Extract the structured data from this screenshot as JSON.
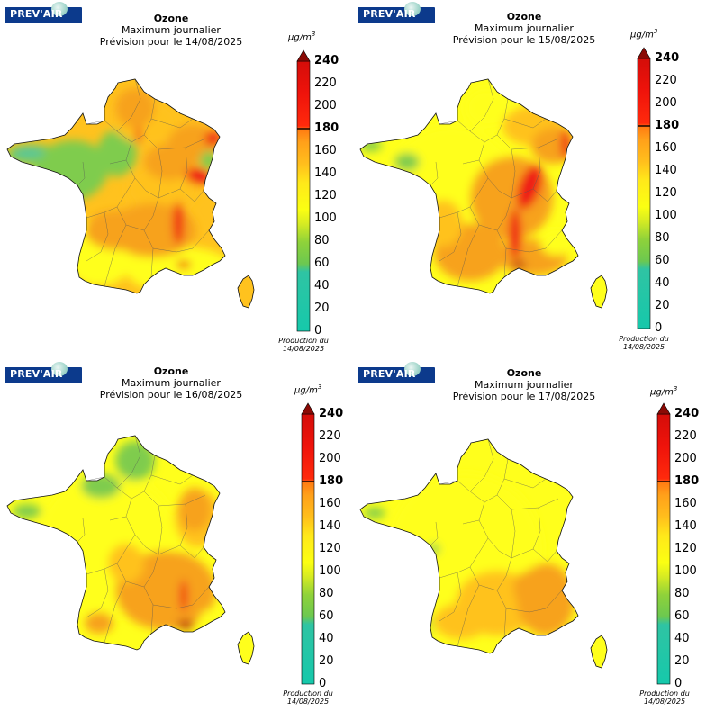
{
  "brand": "PREV'AIR",
  "colorbar": {
    "unit": "µg/m",
    "unit_exp": "3",
    "ticks": [
      0,
      20,
      40,
      60,
      80,
      100,
      120,
      140,
      160,
      180,
      200,
      220,
      240
    ],
    "bold_ticks": [
      180,
      240
    ],
    "colors": [
      "#16c8ab",
      "#3ec3a2",
      "#79c94a",
      "#b6e51c",
      "#f2ff10",
      "#ffdb1d",
      "#ffa218",
      "#ff6a10",
      "#ff1a0c",
      "#e00a05",
      "#8a0a05"
    ],
    "production": [
      "Production du",
      "14/08/2025"
    ]
  },
  "panels": [
    {
      "title": "Ozone",
      "subtitle": "Maximum journalier",
      "forecast": "Prévision pour le 14/08/2025"
    },
    {
      "title": "Ozone",
      "subtitle": "Maximum journalier",
      "forecast": "Prévision pour le 15/08/2025"
    },
    {
      "title": "Ozone",
      "subtitle": "Maximum journalier",
      "forecast": "Prévision pour le 16/08/2025"
    },
    {
      "title": "Ozone",
      "subtitle": "Maximum journalier",
      "forecast": "Prévision pour le 17/08/2025"
    }
  ],
  "map_colors": {
    "green": "#7fcc4e",
    "teal": "#56c69a",
    "yellow_green": "#d9ec2a",
    "yellow": "#ffff1c",
    "light_orange": "#ffc21e",
    "orange": "#f7a21d",
    "red": "#ef1c13",
    "dark_red": "#b81210"
  }
}
